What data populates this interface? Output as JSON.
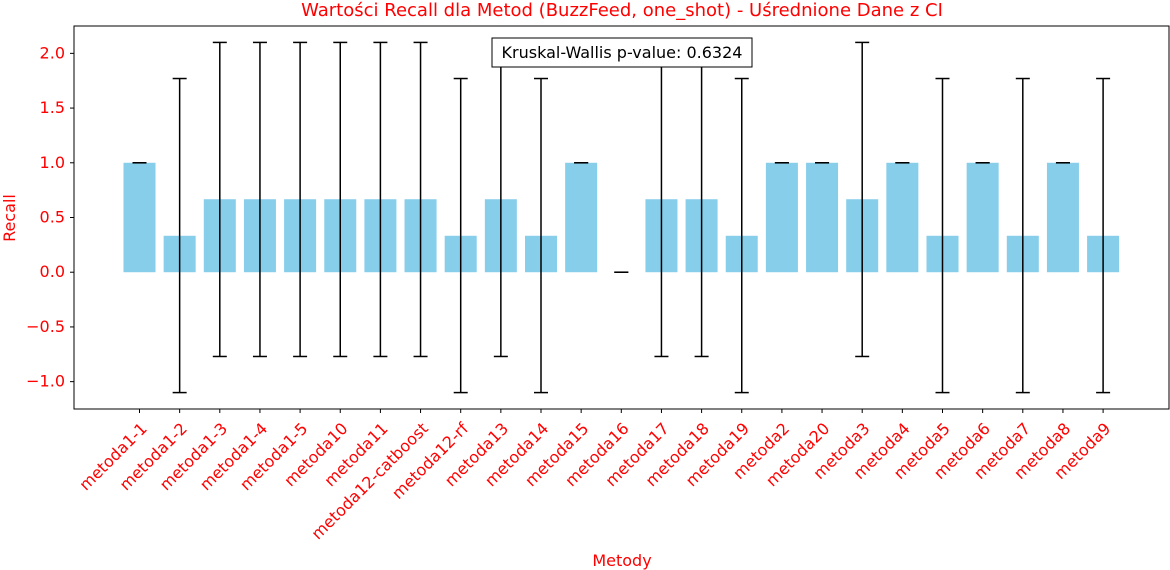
{
  "colors": {
    "bar": "#87ceeb",
    "error_bar": "#000000",
    "text_accent": "#ff0000",
    "axis": "#000000",
    "annotation_border": "#000000"
  },
  "chart_data": {
    "type": "bar",
    "title": "Wartości Recall dla Metod (BuzzFeed, one_shot) - Uśrednione Dane z CI",
    "xlabel": "Metody",
    "ylabel": "Recall",
    "ylim": [
      -1.25,
      2.25
    ],
    "yticks": [
      -1.0,
      -0.5,
      0.0,
      0.5,
      1.0,
      1.5,
      2.0
    ],
    "ytick_labels": [
      "−1.0",
      "−0.5",
      "0.0",
      "0.5",
      "1.0",
      "1.5",
      "2.0"
    ],
    "grid": false,
    "annotation": "Kruskal-Wallis p-value: 0.6324",
    "categories": [
      "metoda1-1",
      "metoda1-2",
      "metoda1-3",
      "metoda1-4",
      "metoda1-5",
      "metoda10",
      "metoda11",
      "metoda12-catboost",
      "metoda12-rf",
      "metoda13",
      "metoda14",
      "metoda15",
      "metoda16",
      "metoda17",
      "metoda18",
      "metoda19",
      "metoda2",
      "metoda20",
      "metoda3",
      "metoda4",
      "metoda5",
      "metoda6",
      "metoda7",
      "metoda8",
      "metoda9"
    ],
    "values": [
      1.0,
      0.333,
      0.667,
      0.667,
      0.667,
      0.667,
      0.667,
      0.667,
      0.333,
      0.667,
      0.333,
      1.0,
      0.0,
      0.667,
      0.667,
      0.333,
      1.0,
      1.0,
      0.667,
      1.0,
      0.333,
      1.0,
      0.333,
      1.0,
      0.333
    ],
    "ci_lower": [
      1.0,
      -1.1,
      -0.77,
      -0.77,
      -0.77,
      -0.77,
      -0.77,
      -0.77,
      -1.1,
      -0.77,
      -1.1,
      1.0,
      0.0,
      -0.77,
      -0.77,
      -1.1,
      1.0,
      1.0,
      -0.77,
      1.0,
      -1.1,
      1.0,
      -1.1,
      1.0,
      -1.1
    ],
    "ci_upper": [
      1.0,
      1.77,
      2.1,
      2.1,
      2.1,
      2.1,
      2.1,
      2.1,
      1.77,
      2.1,
      1.77,
      1.0,
      0.0,
      2.1,
      2.1,
      1.77,
      1.0,
      1.0,
      2.1,
      1.0,
      1.77,
      1.0,
      1.77,
      1.0,
      1.77
    ]
  }
}
